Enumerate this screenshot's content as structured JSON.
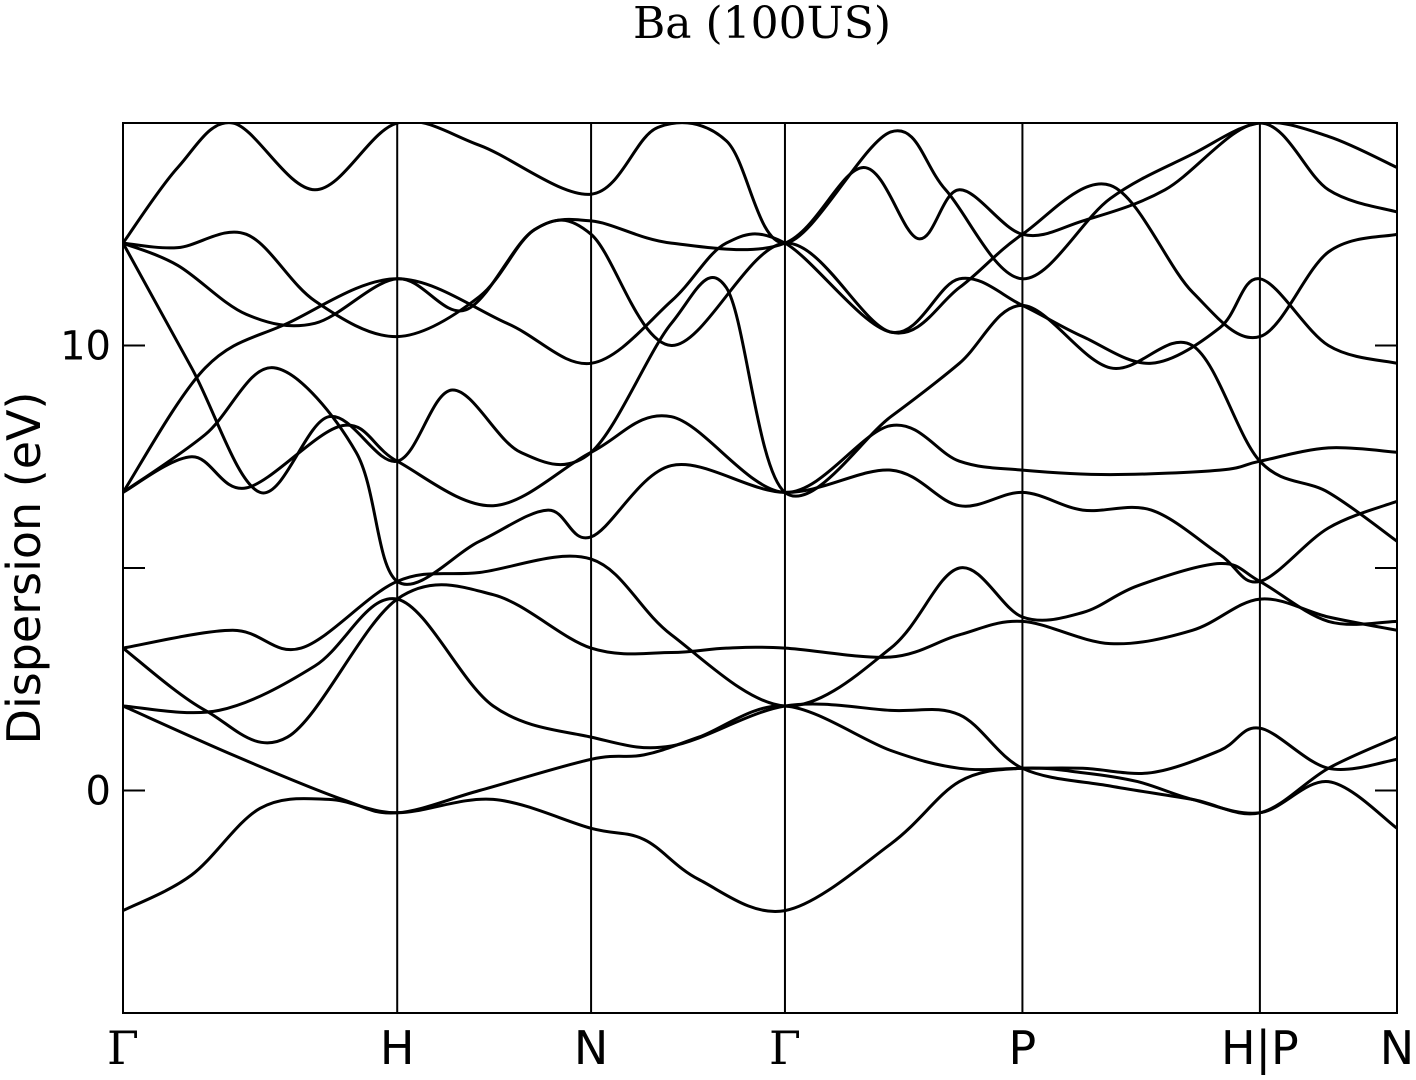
{
  "chart_data": {
    "type": "line",
    "title": "Ba (100US)",
    "xlabel": "",
    "ylabel": "Dispersion (eV)",
    "ylim": [
      -5,
      15
    ],
    "yticks": [
      0,
      5,
      10
    ],
    "ytick_labels": [
      "0",
      "",
      "10"
    ],
    "grid": false,
    "x_high_symmetry_points": [
      {
        "label": "Γ",
        "x": 0.0,
        "style": "serif"
      },
      {
        "label": "H",
        "x": 1.0,
        "style": "sans"
      },
      {
        "label": "N",
        "x": 1.707,
        "style": "sans"
      },
      {
        "label": "Γ",
        "x": 2.414,
        "style": "serif"
      },
      {
        "label": "P",
        "x": 3.28,
        "style": "sans"
      },
      {
        "label": "H|P",
        "x": 4.146,
        "style": "sans"
      },
      {
        "label": "N",
        "x": 4.646,
        "style": "sans"
      }
    ],
    "xlim": [
      0.0,
      4.646
    ],
    "series": [
      {
        "x": [
          0,
          0.25,
          0.5,
          0.75,
          1.0,
          1.35,
          1.707,
          1.9,
          2.1,
          2.414,
          2.8,
          3.05,
          3.28,
          3.5,
          3.7,
          3.9,
          4.146,
          4.396,
          4.646
        ],
        "values": [
          -2.7,
          -1.9,
          -0.4,
          -0.2,
          -0.5,
          -0.2,
          -0.85,
          -1.1,
          -2.0,
          -2.7,
          -1.2,
          0.2,
          0.5,
          0.4,
          0.2,
          -0.2,
          -0.5,
          0.2,
          -0.85
        ]
      },
      {
        "x": [
          0,
          0.4,
          0.8,
          1.0,
          1.3,
          1.707,
          1.9,
          2.1,
          2.414,
          2.8,
          3.05,
          3.28,
          3.5,
          3.75,
          4.0,
          4.146,
          4.396,
          4.646
        ],
        "values": [
          1.9,
          0.8,
          -0.2,
          -0.5,
          0.0,
          0.7,
          0.8,
          1.2,
          1.9,
          0.9,
          0.5,
          0.5,
          0.5,
          0.4,
          0.9,
          1.4,
          0.5,
          0.7
        ]
      },
      {
        "x": [
          0,
          0.35,
          0.7,
          1.0,
          1.35,
          1.707,
          2.0,
          2.414,
          2.8,
          3.05,
          3.28,
          3.6,
          3.9,
          4.146,
          4.396,
          4.646
        ],
        "values": [
          1.9,
          1.8,
          2.8,
          4.3,
          1.9,
          1.2,
          1.0,
          1.9,
          1.8,
          1.7,
          0.5,
          0.1,
          -0.2,
          -0.5,
          0.5,
          1.2
        ]
      },
      {
        "x": [
          0,
          0.3,
          0.6,
          1.0,
          1.35,
          1.707,
          2.0,
          2.2,
          2.414,
          2.8,
          3.05,
          3.28,
          3.6,
          3.9,
          4.146,
          4.396,
          4.646
        ],
        "values": [
          3.2,
          1.8,
          1.2,
          4.3,
          4.4,
          3.2,
          3.1,
          3.2,
          3.2,
          3.0,
          3.5,
          3.8,
          3.3,
          3.6,
          4.3,
          3.9,
          3.6
        ]
      },
      {
        "x": [
          0,
          0.4,
          0.65,
          1.0,
          1.3,
          1.707,
          2.0,
          2.414,
          2.8,
          3.05,
          3.28,
          3.5,
          3.7,
          4.0,
          4.146,
          4.396,
          4.646
        ],
        "values": [
          3.2,
          3.6,
          3.2,
          4.7,
          4.9,
          5.2,
          3.5,
          1.9,
          3.2,
          5.0,
          3.9,
          4.0,
          4.6,
          5.1,
          4.7,
          3.8,
          3.8
        ]
      },
      {
        "x": [
          0,
          0.3,
          0.55,
          0.85,
          1.0,
          1.3,
          1.55,
          1.707,
          2.0,
          2.414,
          2.8,
          3.05,
          3.28,
          3.5,
          3.75,
          4.0,
          4.146,
          4.396,
          4.646
        ],
        "values": [
          6.7,
          8.0,
          9.5,
          7.6,
          4.7,
          5.6,
          6.3,
          5.7,
          7.3,
          6.7,
          7.2,
          6.4,
          6.7,
          6.3,
          6.3,
          5.3,
          4.7,
          5.9,
          6.5
        ]
      },
      {
        "x": [
          0,
          0.25,
          0.45,
          0.8,
          1.0,
          1.35,
          1.707,
          2.0,
          2.414,
          2.8,
          3.05,
          3.28,
          3.6,
          4.0,
          4.146,
          4.396,
          4.646
        ],
        "values": [
          6.7,
          7.5,
          6.8,
          8.2,
          7.4,
          6.4,
          7.6,
          8.4,
          6.7,
          8.2,
          7.4,
          7.2,
          7.1,
          7.2,
          7.4,
          7.7,
          7.6
        ]
      },
      {
        "x": [
          0,
          0.25,
          0.5,
          0.75,
          1.0,
          1.2,
          1.45,
          1.707,
          2.0,
          2.2,
          2.414,
          2.8,
          3.05,
          3.28,
          3.6,
          3.9,
          4.146,
          4.396,
          4.646
        ],
        "values": [
          12.3,
          9.5,
          6.7,
          8.4,
          7.4,
          9.0,
          7.6,
          7.6,
          10.5,
          11.3,
          6.7,
          8.4,
          9.6,
          10.9,
          9.5,
          10.0,
          7.4,
          6.7,
          5.6
        ]
      },
      {
        "x": [
          0,
          0.3,
          0.6,
          1.0,
          1.4,
          1.707,
          2.0,
          2.2,
          2.414,
          2.8,
          3.05,
          3.28,
          3.5,
          3.75,
          4.0,
          4.146,
          4.396,
          4.646
        ],
        "values": [
          6.7,
          9.5,
          10.5,
          11.5,
          10.5,
          9.6,
          11.0,
          12.3,
          12.3,
          10.3,
          11.5,
          10.9,
          10.2,
          9.6,
          10.4,
          11.5,
          10.0,
          9.6
        ]
      },
      {
        "x": [
          0,
          0.2,
          0.45,
          0.7,
          1.0,
          1.25,
          1.5,
          1.707,
          2.0,
          2.414,
          2.8,
          3.05,
          3.28,
          3.6,
          3.9,
          4.146,
          4.396,
          4.646
        ],
        "values": [
          12.3,
          11.8,
          10.7,
          10.5,
          11.5,
          10.8,
          12.6,
          12.5,
          10.0,
          12.3,
          10.3,
          11.3,
          12.5,
          13.6,
          11.2,
          10.2,
          12.1,
          12.5
        ]
      },
      {
        "x": [
          0,
          0.2,
          0.45,
          0.7,
          1.0,
          1.3,
          1.5,
          1.707,
          2.0,
          2.414,
          2.7,
          2.9,
          3.05,
          3.28,
          3.5,
          3.8,
          4.146,
          4.396,
          4.646
        ],
        "values": [
          12.3,
          12.2,
          12.5,
          11.0,
          10.2,
          11.1,
          12.6,
          12.8,
          12.3,
          12.3,
          14.0,
          12.4,
          13.5,
          12.5,
          12.8,
          13.5,
          15.0,
          13.5,
          13.0
        ]
      },
      {
        "x": [
          0,
          0.2,
          0.4,
          0.7,
          1.0,
          1.3,
          1.707,
          1.95,
          2.2,
          2.414,
          2.8,
          3.0,
          3.28,
          3.6,
          3.9,
          4.146,
          4.396,
          4.646
        ],
        "values": [
          12.3,
          14.0,
          15.0,
          13.5,
          15.0,
          14.5,
          13.4,
          14.9,
          14.6,
          12.3,
          14.8,
          13.5,
          11.5,
          13.3,
          14.3,
          15.0,
          14.7,
          14.0
        ]
      }
    ]
  }
}
